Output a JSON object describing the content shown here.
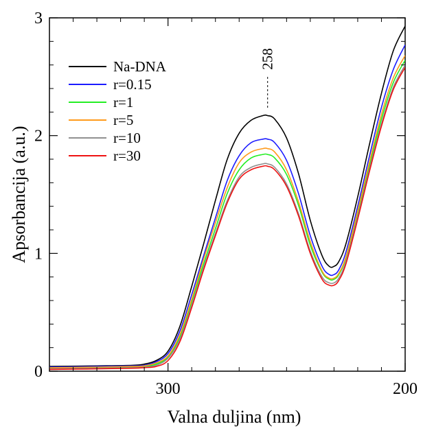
{
  "chart_data": {
    "type": "line",
    "xlabel": "Valna duljina (nm)",
    "ylabel": "Apsorbancija (a.u.)",
    "xlim": [
      350,
      200
    ],
    "ylim": [
      0,
      3
    ],
    "x_ticks": [
      300,
      200
    ],
    "y_ticks": [
      0,
      1,
      2,
      3
    ],
    "grid": false,
    "legend_position": "top-left",
    "annotation": {
      "text": "258",
      "x": 258
    },
    "x": [
      350,
      330,
      315,
      310,
      305,
      300,
      295,
      290,
      285,
      280,
      275,
      270,
      265,
      260,
      258,
      255,
      250,
      245,
      240,
      235,
      232,
      230,
      228,
      225,
      220,
      215,
      210,
      205,
      200
    ],
    "series": [
      {
        "name": "Na-DNA",
        "color": "#000000",
        "values": [
          0.04,
          0.045,
          0.05,
          0.06,
          0.09,
          0.17,
          0.38,
          0.72,
          1.08,
          1.45,
          1.8,
          2.02,
          2.13,
          2.17,
          2.17,
          2.14,
          1.98,
          1.68,
          1.28,
          0.98,
          0.89,
          0.89,
          0.93,
          1.08,
          1.48,
          1.93,
          2.36,
          2.72,
          2.93
        ]
      },
      {
        "name": "r=0.15",
        "color": "#1a1aff",
        "values": [
          0.035,
          0.04,
          0.045,
          0.05,
          0.08,
          0.15,
          0.34,
          0.65,
          0.98,
          1.3,
          1.62,
          1.83,
          1.94,
          1.97,
          1.97,
          1.94,
          1.79,
          1.51,
          1.15,
          0.89,
          0.82,
          0.82,
          0.86,
          1.01,
          1.4,
          1.83,
          2.24,
          2.56,
          2.77
        ]
      },
      {
        "name": "r=1",
        "color": "#22ee22",
        "values": [
          0.025,
          0.03,
          0.035,
          0.04,
          0.06,
          0.12,
          0.29,
          0.59,
          0.91,
          1.21,
          1.51,
          1.71,
          1.81,
          1.84,
          1.84,
          1.81,
          1.67,
          1.41,
          1.07,
          0.84,
          0.78,
          0.78,
          0.82,
          0.96,
          1.34,
          1.75,
          2.14,
          2.45,
          2.64
        ]
      },
      {
        "name": "r=5",
        "color": "#ff9a1a",
        "values": [
          0.03,
          0.035,
          0.04,
          0.045,
          0.07,
          0.13,
          0.31,
          0.61,
          0.95,
          1.26,
          1.56,
          1.77,
          1.86,
          1.89,
          1.89,
          1.86,
          1.71,
          1.44,
          1.1,
          0.85,
          0.79,
          0.79,
          0.83,
          0.97,
          1.36,
          1.78,
          2.18,
          2.49,
          2.68
        ]
      },
      {
        "name": "r=10",
        "color": "#909090",
        "values": [
          0.02,
          0.025,
          0.03,
          0.035,
          0.05,
          0.11,
          0.27,
          0.56,
          0.88,
          1.17,
          1.45,
          1.65,
          1.73,
          1.76,
          1.76,
          1.73,
          1.59,
          1.34,
          1.02,
          0.8,
          0.75,
          0.75,
          0.79,
          0.93,
          1.31,
          1.72,
          2.1,
          2.41,
          2.6
        ]
      },
      {
        "name": "r=30",
        "color": "#ee1111",
        "values": [
          0.015,
          0.02,
          0.025,
          0.03,
          0.04,
          0.09,
          0.25,
          0.54,
          0.86,
          1.15,
          1.43,
          1.63,
          1.71,
          1.74,
          1.74,
          1.71,
          1.57,
          1.32,
          1.0,
          0.78,
          0.73,
          0.73,
          0.77,
          0.91,
          1.29,
          1.7,
          2.08,
          2.39,
          2.58
        ]
      }
    ]
  }
}
